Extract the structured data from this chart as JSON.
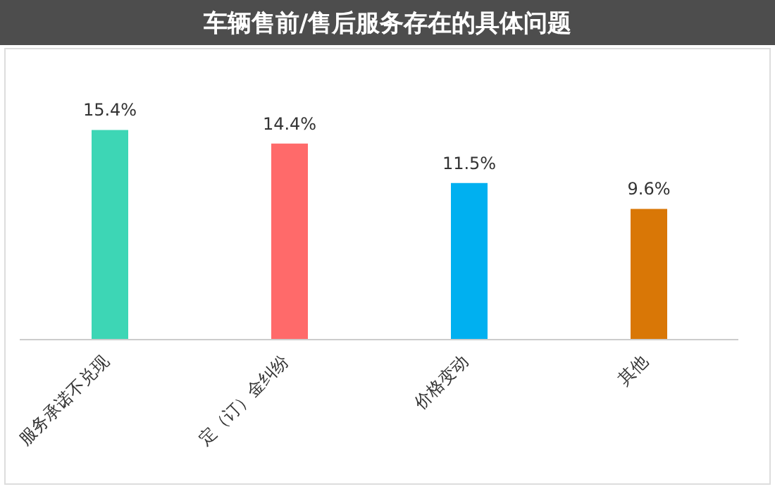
{
  "chart_data": {
    "type": "bar",
    "title": "车辆售前/售后服务存在的具体问题",
    "categories": [
      "服务承诺不兑现",
      "定（订）金纠纷",
      "价格变动",
      "其他"
    ],
    "values": [
      15.4,
      14.4,
      11.5,
      9.6
    ],
    "colors": [
      "#3dd6b5",
      "#ff6a6a",
      "#00b0f0",
      "#d97706"
    ],
    "value_labels": [
      "15.4%",
      "14.4%",
      "11.5%",
      "9.6%"
    ],
    "grid": false,
    "legend": false
  }
}
